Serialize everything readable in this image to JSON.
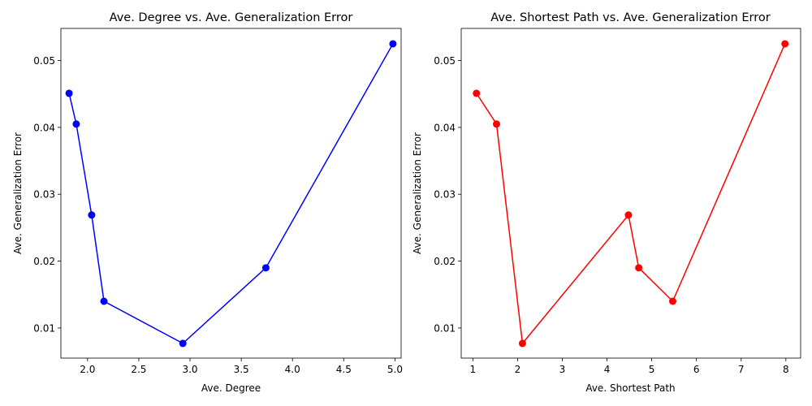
{
  "chart_data": [
    {
      "type": "line",
      "title": "Ave. Degree vs. Ave. Generalization Error",
      "xlabel": "Ave. Degree",
      "ylabel": "Ave. Generalization Error",
      "color": "#0000ff",
      "marker": "circle",
      "xlim": [
        1.74,
        5.06
      ],
      "ylim": [
        0.0055,
        0.0548
      ],
      "xticks": [
        2.0,
        2.5,
        3.0,
        3.5,
        4.0,
        4.5,
        5.0
      ],
      "xtick_labels": [
        "2.0",
        "2.5",
        "3.0",
        "3.5",
        "4.0",
        "4.5",
        "5.0"
      ],
      "yticks": [
        0.01,
        0.02,
        0.03,
        0.04,
        0.05
      ],
      "ytick_labels": [
        "0.01",
        "0.02",
        "0.03",
        "0.04",
        "0.05"
      ],
      "grid": false,
      "x": [
        1.82,
        1.89,
        2.04,
        2.16,
        2.93,
        3.74,
        4.98
      ],
      "y": [
        0.0451,
        0.0405,
        0.0269,
        0.014,
        0.0077,
        0.019,
        0.0525
      ]
    },
    {
      "type": "line",
      "title": "Ave. Shortest Path vs. Ave. Generalization Error",
      "xlabel": "Ave. Shortest Path",
      "ylabel": "Ave. Generalization Error",
      "color": "#ff0000",
      "marker": "circle",
      "xlim": [
        0.74,
        8.33
      ],
      "ylim": [
        0.0055,
        0.0548
      ],
      "xticks": [
        1,
        2,
        3,
        4,
        5,
        6,
        7,
        8
      ],
      "xtick_labels": [
        "1",
        "2",
        "3",
        "4",
        "5",
        "6",
        "7",
        "8"
      ],
      "yticks": [
        0.01,
        0.02,
        0.03,
        0.04,
        0.05
      ],
      "ytick_labels": [
        "0.01",
        "0.02",
        "0.03",
        "0.04",
        "0.05"
      ],
      "grid": false,
      "x": [
        1.08,
        1.53,
        2.11,
        4.48,
        4.71,
        5.47,
        7.98
      ],
      "y": [
        0.0451,
        0.0405,
        0.0077,
        0.0269,
        0.019,
        0.014,
        0.0525
      ]
    }
  ]
}
